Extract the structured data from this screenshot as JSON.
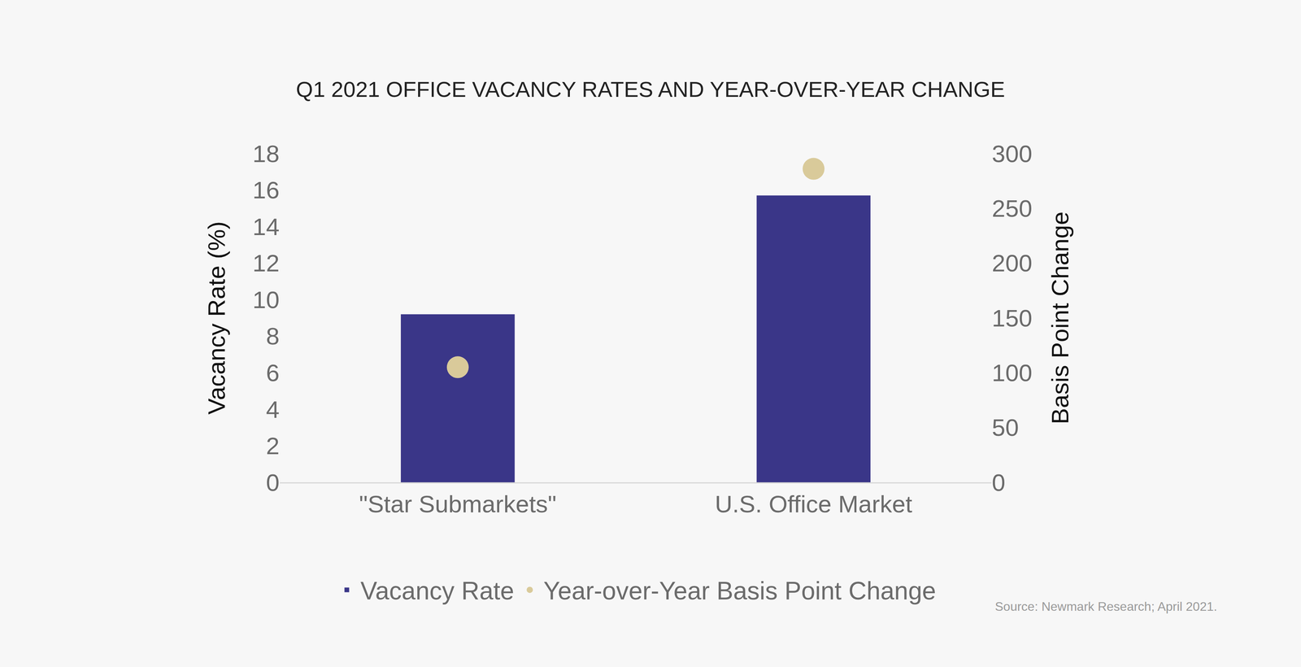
{
  "chart_data": {
    "type": "bar",
    "title": "Q1 2021 OFFICE VACANCY RATES AND YEAR-OVER-YEAR CHANGE",
    "categories": [
      "\"Star Submarkets\"",
      "U.S. Office Market"
    ],
    "series": [
      {
        "name": "Vacancy Rate",
        "type": "bar",
        "color": "#3a3688",
        "values": [
          9.2,
          15.7
        ]
      },
      {
        "name": "Year-over-Year Basis Point Change",
        "type": "scatter",
        "axis": "y2",
        "marker": "circle",
        "color": "#d9ca9a",
        "values": [
          105,
          286
        ]
      }
    ],
    "y_label": "Vacancy Rate (%)",
    "y2_label": "Basis Point Change",
    "ylim": [
      0,
      18
    ],
    "yticks": [
      0,
      2,
      4,
      6,
      8,
      10,
      12,
      14,
      16,
      18
    ],
    "y2lim": [
      0,
      300
    ],
    "y2ticks": [
      0,
      50,
      100,
      150,
      200,
      250,
      300
    ],
    "grid": false,
    "legend": "bottom",
    "source": "Source: Newmark Research; April 2021."
  }
}
